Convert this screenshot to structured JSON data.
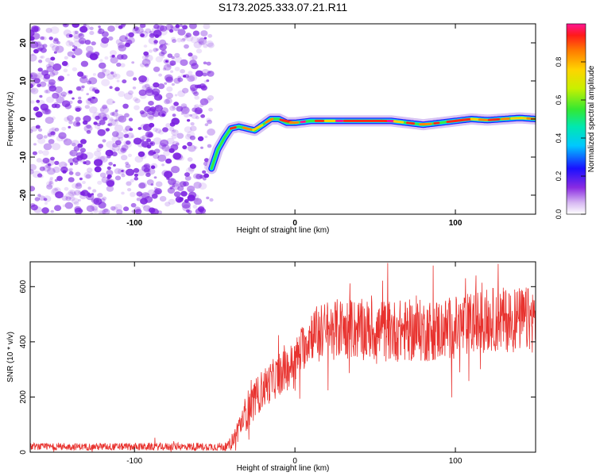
{
  "title": "S173.2025.333.07.21.R11",
  "colors": {
    "snr_line": "#e8322e",
    "spec_scatter": "#7a1fe0"
  },
  "chart_data": [
    {
      "type": "heatmap",
      "name": "spectrogram",
      "xlabel": "Height of straight line (km)",
      "ylabel": "Frequency (Hz)",
      "xlim": [
        -165,
        150
      ],
      "ylim": [
        -25,
        25
      ],
      "xticks": [
        {
          "value": -100,
          "label": "-100"
        },
        {
          "value": 0,
          "label": "0"
        },
        {
          "value": 100,
          "label": "100"
        }
      ],
      "yticks": [
        {
          "value": -20,
          "label": "-20"
        },
        {
          "value": -10,
          "label": "-10"
        },
        {
          "value": 0,
          "label": "0"
        },
        {
          "value": 10,
          "label": "10"
        },
        {
          "value": 20,
          "label": "20"
        }
      ],
      "noise_region_x": [
        -165,
        -52
      ],
      "ridge": {
        "x": [
          -52,
          -48,
          -44,
          -40,
          -35,
          -30,
          -25,
          -20,
          -15,
          -10,
          -5,
          0,
          10,
          20,
          40,
          60,
          70,
          80,
          90,
          100,
          110,
          120,
          130,
          140,
          150
        ],
        "y": [
          -13,
          -8,
          -5,
          -2.5,
          -2,
          -2.5,
          -3,
          -1.5,
          0,
          0,
          -1,
          -1,
          -0.5,
          -0.5,
          -0.5,
          -0.5,
          -1,
          -1.5,
          -1,
          -0.5,
          0,
          -0.3,
          0,
          0.3,
          0
        ]
      },
      "colorbar": {
        "label": "Normalized spectral amplitude",
        "range": [
          0,
          1
        ],
        "ticks": [
          {
            "value": 0,
            "label": "0.0"
          },
          {
            "value": 0.2,
            "label": "0.2"
          },
          {
            "value": 0.4,
            "label": "0.4"
          },
          {
            "value": 0.6,
            "label": "0.6"
          },
          {
            "value": 0.8,
            "label": "0.8"
          }
        ]
      }
    },
    {
      "type": "line",
      "name": "snr",
      "xlabel": "Height of straight line (km)",
      "ylabel": "SNR (10 * v/v)",
      "xlim": [
        -165,
        150
      ],
      "ylim": [
        0,
        690
      ],
      "xticks": [
        {
          "value": -100,
          "label": "-100"
        },
        {
          "value": 0,
          "label": "0"
        },
        {
          "value": 100,
          "label": "100"
        }
      ],
      "yticks": [
        {
          "value": 0,
          "label": "0"
        },
        {
          "value": 200,
          "label": "200"
        },
        {
          "value": 400,
          "label": "400"
        },
        {
          "value": 600,
          "label": "600"
        }
      ],
      "trend": {
        "x": [
          -165,
          -42,
          -38,
          -30,
          -20,
          -10,
          -5,
          0,
          5,
          10,
          20,
          30,
          50,
          80,
          100,
          120,
          150
        ],
        "y": [
          20,
          20,
          50,
          150,
          230,
          280,
          300,
          330,
          380,
          430,
          440,
          450,
          440,
          440,
          450,
          480,
          480
        ]
      },
      "noise_amplitude": {
        "x": [
          -165,
          -42,
          -30,
          0,
          20,
          150
        ],
        "y": [
          12,
          15,
          70,
          80,
          110,
          120
        ]
      }
    }
  ]
}
